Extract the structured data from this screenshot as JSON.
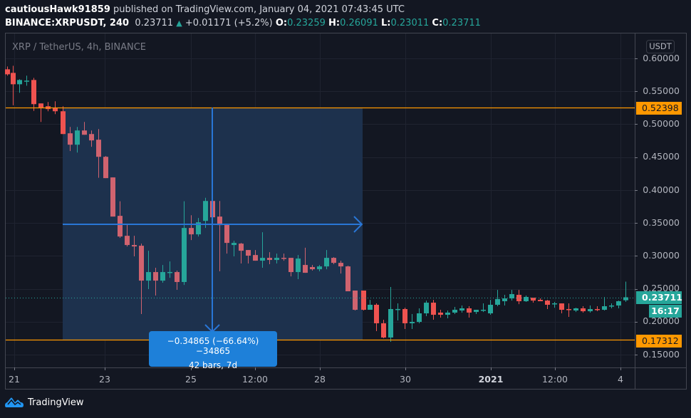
{
  "header": {
    "author": "cautiousHawk91859",
    "published_text": " published on TradingView.com, January 04, 2021 07:43:45 UTC",
    "symbol_interval": "BINANCE:XRPUSDT, 240",
    "last_price": "0.23711",
    "change": "+0.01171 (+5.2%)",
    "ohlc": {
      "o_label": "O:",
      "o": "0.23259",
      "h_label": "H:",
      "h": "0.26091",
      "l_label": "L:",
      "l": "0.23011",
      "c_label": "C:",
      "c": "0.23711"
    }
  },
  "legend": {
    "title": "XRP / TetherUS, 4h, BINANCE"
  },
  "price_axis": {
    "currency": "USDT",
    "ticks": [
      "0.60000",
      "0.55000",
      "0.50000",
      "0.45000",
      "0.40000",
      "0.35000",
      "0.30000",
      "0.25000",
      "0.20000",
      "0.15000"
    ],
    "tags": {
      "upper_line": "0.52398",
      "lower_line": "0.17312",
      "last_price": "0.23711",
      "countdown": "16:17"
    }
  },
  "time_axis": {
    "labels": [
      {
        "text": "21",
        "x": 20
      },
      {
        "text": "23",
        "x": 147
      },
      {
        "text": "25",
        "x": 268
      },
      {
        "text": "12:00",
        "x": 358
      },
      {
        "text": "28",
        "x": 449
      },
      {
        "text": "30",
        "x": 569
      },
      {
        "text": "2021",
        "x": 689
      },
      {
        "text": "12:00",
        "x": 779
      },
      {
        "text": "4",
        "x": 871
      }
    ]
  },
  "measure": {
    "line1": "−0.34865 (−66.64%) −34865",
    "line2": "42 bars, 7d"
  },
  "footer": {
    "brand": "TradingView"
  },
  "colors": {
    "background": "#131722",
    "up": "#26a69a",
    "down": "#ef5350",
    "down_in_range": "#d0636f",
    "line_orange": "#ff9800",
    "measure_blue": "#2962ff",
    "measure_fill": "#1e3350"
  },
  "chart_data": {
    "type": "candlestick",
    "title": "XRP / TetherUS, 4h, BINANCE",
    "xlabel": "",
    "ylabel": "USDT",
    "ylim": [
      0.13,
      0.62
    ],
    "x_tick_labels": [
      "21",
      "23",
      "25",
      "12:00",
      "28",
      "30",
      "2021",
      "12:00",
      "4"
    ],
    "y_tick_labels": [
      "0.60000",
      "0.55000",
      "0.50000",
      "0.45000",
      "0.40000",
      "0.35000",
      "0.30000",
      "0.25000",
      "0.20000",
      "0.15000"
    ],
    "horizontal_lines": [
      0.52398,
      0.17312
    ],
    "last_price": 0.23711,
    "grid": true,
    "candles": [
      {
        "x": 10,
        "o": 0.5834,
        "h": 0.5877,
        "l": 0.5737,
        "c": 0.5758
      },
      {
        "x": 18,
        "o": 0.578,
        "h": 0.5888,
        "l": 0.5288,
        "c": 0.5607
      },
      {
        "x": 27,
        "o": 0.5607,
        "h": 0.5683,
        "l": 0.5478,
        "c": 0.5672
      },
      {
        "x": 37,
        "o": 0.5661,
        "h": 0.5737,
        "l": 0.5585,
        "c": 0.5662
      },
      {
        "x": 47,
        "o": 0.5672,
        "h": 0.5704,
        "l": 0.5202,
        "c": 0.5305
      },
      {
        "x": 57,
        "o": 0.5316,
        "h": 0.5316,
        "l": 0.5035,
        "c": 0.5251
      },
      {
        "x": 67,
        "o": 0.5273,
        "h": 0.5337,
        "l": 0.5197,
        "c": 0.523
      },
      {
        "x": 77,
        "o": 0.5251,
        "h": 0.5348,
        "l": 0.5154,
        "c": 0.5197
      },
      {
        "x": 88,
        "o": 0.5197,
        "h": 0.5272,
        "l": 0.4905,
        "c": 0.4851
      },
      {
        "x": 98,
        "o": 0.4862,
        "h": 0.4959,
        "l": 0.4592,
        "c": 0.4689
      },
      {
        "x": 108,
        "o": 0.4689,
        "h": 0.4959,
        "l": 0.457,
        "c": 0.4905
      },
      {
        "x": 118,
        "o": 0.4905,
        "h": 0.5035,
        "l": 0.4862,
        "c": 0.484
      },
      {
        "x": 128,
        "o": 0.4851,
        "h": 0.4905,
        "l": 0.4657,
        "c": 0.4754
      },
      {
        "x": 138,
        "o": 0.4765,
        "h": 0.4927,
        "l": 0.4186,
        "c": 0.4505
      },
      {
        "x": 148,
        "o": 0.4505,
        "h": 0.4516,
        "l": 0.4186,
        "c": 0.4181
      },
      {
        "x": 158,
        "o": 0.4192,
        "h": 0.3829,
        "l": 0.3667,
        "c": 0.3597
      },
      {
        "x": 168,
        "o": 0.3608,
        "h": 0.3829,
        "l": 0.3273,
        "c": 0.3294
      },
      {
        "x": 178,
        "o": 0.3305,
        "h": 0.3489,
        "l": 0.3143,
        "c": 0.3165
      },
      {
        "x": 188,
        "o": 0.3165,
        "h": 0.3305,
        "l": 0.2992,
        "c": 0.3143
      },
      {
        "x": 198,
        "o": 0.3154,
        "h": 0.3186,
        "l": 0.2117,
        "c": 0.2624
      },
      {
        "x": 208,
        "o": 0.2624,
        "h": 0.3078,
        "l": 0.2495,
        "c": 0.2754
      },
      {
        "x": 218,
        "o": 0.2754,
        "h": 0.2819,
        "l": 0.2398,
        "c": 0.2624
      },
      {
        "x": 228,
        "o": 0.2624,
        "h": 0.2862,
        "l": 0.2592,
        "c": 0.2754
      },
      {
        "x": 238,
        "o": 0.2754,
        "h": 0.2916,
        "l": 0.2667,
        "c": 0.2755
      },
      {
        "x": 248,
        "o": 0.2754,
        "h": 0.2776,
        "l": 0.2484,
        "c": 0.2603
      },
      {
        "x": 258,
        "o": 0.2603,
        "h": 0.3829,
        "l": 0.2559,
        "c": 0.3424
      },
      {
        "x": 268,
        "o": 0.3424,
        "h": 0.3618,
        "l": 0.324,
        "c": 0.3327
      },
      {
        "x": 278,
        "o": 0.3327,
        "h": 0.3575,
        "l": 0.3294,
        "c": 0.351
      },
      {
        "x": 288,
        "o": 0.3532,
        "h": 0.3883,
        "l": 0.3424,
        "c": 0.3834
      },
      {
        "x": 298,
        "o": 0.3834,
        "h": 0.3834,
        "l": 0.3348,
        "c": 0.3586
      },
      {
        "x": 308,
        "o": 0.3597,
        "h": 0.3834,
        "l": 0.2765,
        "c": 0.3467
      },
      {
        "x": 318,
        "o": 0.3478,
        "h": 0.3478,
        "l": 0.3035,
        "c": 0.3197
      },
      {
        "x": 328,
        "o": 0.3165,
        "h": 0.3229,
        "l": 0.2992,
        "c": 0.3197
      },
      {
        "x": 338,
        "o": 0.3186,
        "h": 0.3197,
        "l": 0.2884,
        "c": 0.3078
      },
      {
        "x": 348,
        "o": 0.3089,
        "h": 0.3089,
        "l": 0.2884,
        "c": 0.3003
      },
      {
        "x": 358,
        "o": 0.3013,
        "h": 0.3089,
        "l": 0.297,
        "c": 0.2927
      },
      {
        "x": 368,
        "o": 0.2927,
        "h": 0.3359,
        "l": 0.2819,
        "c": 0.297
      },
      {
        "x": 378,
        "o": 0.297,
        "h": 0.3056,
        "l": 0.2873,
        "c": 0.2938
      },
      {
        "x": 388,
        "o": 0.2938,
        "h": 0.3035,
        "l": 0.2884,
        "c": 0.297
      },
      {
        "x": 398,
        "o": 0.297,
        "h": 0.3035,
        "l": 0.2927,
        "c": 0.2959
      },
      {
        "x": 408,
        "o": 0.297,
        "h": 0.297,
        "l": 0.2689,
        "c": 0.2754
      },
      {
        "x": 418,
        "o": 0.2754,
        "h": 0.3013,
        "l": 0.2646,
        "c": 0.2959
      },
      {
        "x": 428,
        "o": 0.2862,
        "h": 0.3124,
        "l": 0.2754,
        "c": 0.2743
      },
      {
        "x": 438,
        "o": 0.283,
        "h": 0.2862,
        "l": 0.2776,
        "c": 0.2797
      },
      {
        "x": 448,
        "o": 0.2797,
        "h": 0.2862,
        "l": 0.2765,
        "c": 0.284
      },
      {
        "x": 458,
        "o": 0.284,
        "h": 0.3089,
        "l": 0.2797,
        "c": 0.297
      },
      {
        "x": 468,
        "o": 0.297,
        "h": 0.2981,
        "l": 0.2873,
        "c": 0.2894
      },
      {
        "x": 478,
        "o": 0.2894,
        "h": 0.2927,
        "l": 0.2732,
        "c": 0.284
      },
      {
        "x": 488,
        "o": 0.284,
        "h": 0.2851,
        "l": 0.2494,
        "c": 0.2462
      },
      {
        "x": 498,
        "o": 0.2473,
        "h": 0.2473,
        "l": 0.217,
        "c": 0.2181
      },
      {
        "x": 510,
        "o": 0.2473,
        "h": 0.2473,
        "l": 0.217,
        "c": 0.2181
      },
      {
        "x": 519,
        "o": 0.2181,
        "h": 0.2332,
        "l": 0.2181,
        "c": 0.2257
      },
      {
        "x": 528,
        "o": 0.2257,
        "h": 0.2278,
        "l": 0.1857,
        "c": 0.1976
      },
      {
        "x": 538,
        "o": 0.1976,
        "h": 0.203,
        "l": 0.1749,
        "c": 0.176
      },
      {
        "x": 548,
        "o": 0.176,
        "h": 0.2527,
        "l": 0.1695,
        "c": 0.2192
      },
      {
        "x": 558,
        "o": 0.2192,
        "h": 0.2278,
        "l": 0.2019,
        "c": 0.2193
      },
      {
        "x": 568,
        "o": 0.2192,
        "h": 0.2213,
        "l": 0.1889,
        "c": 0.1976
      },
      {
        "x": 578,
        "o": 0.1976,
        "h": 0.2116,
        "l": 0.1889,
        "c": 0.1997
      },
      {
        "x": 588,
        "o": 0.1997,
        "h": 0.2203,
        "l": 0.1976,
        "c": 0.2127
      },
      {
        "x": 598,
        "o": 0.2127,
        "h": 0.2321,
        "l": 0.2084,
        "c": 0.2289
      },
      {
        "x": 608,
        "o": 0.2289,
        "h": 0.2332,
        "l": 0.203,
        "c": 0.2105
      },
      {
        "x": 618,
        "o": 0.2138,
        "h": 0.2181,
        "l": 0.2062,
        "c": 0.2105
      },
      {
        "x": 628,
        "o": 0.2105,
        "h": 0.217,
        "l": 0.2051,
        "c": 0.2138
      },
      {
        "x": 638,
        "o": 0.2138,
        "h": 0.2224,
        "l": 0.2116,
        "c": 0.2181
      },
      {
        "x": 648,
        "o": 0.217,
        "h": 0.2246,
        "l": 0.2138,
        "c": 0.2203
      },
      {
        "x": 658,
        "o": 0.2203,
        "h": 0.2235,
        "l": 0.2062,
        "c": 0.2138
      },
      {
        "x": 668,
        "o": 0.2148,
        "h": 0.2181,
        "l": 0.2116,
        "c": 0.2181
      },
      {
        "x": 678,
        "o": 0.217,
        "h": 0.2278,
        "l": 0.2148,
        "c": 0.2181
      },
      {
        "x": 688,
        "o": 0.2127,
        "h": 0.2332,
        "l": 0.2105,
        "c": 0.2257
      },
      {
        "x": 698,
        "o": 0.2257,
        "h": 0.2483,
        "l": 0.2235,
        "c": 0.2343
      },
      {
        "x": 708,
        "o": 0.2311,
        "h": 0.2408,
        "l": 0.2246,
        "c": 0.2354
      },
      {
        "x": 718,
        "o": 0.2354,
        "h": 0.2483,
        "l": 0.2321,
        "c": 0.2419
      },
      {
        "x": 728,
        "o": 0.2408,
        "h": 0.2483,
        "l": 0.2267,
        "c": 0.2311
      },
      {
        "x": 738,
        "o": 0.2311,
        "h": 0.2397,
        "l": 0.23,
        "c": 0.2376
      },
      {
        "x": 748,
        "o": 0.2365,
        "h": 0.2365,
        "l": 0.2289,
        "c": 0.2321
      },
      {
        "x": 758,
        "o": 0.2332,
        "h": 0.2354,
        "l": 0.2321,
        "c": 0.2311
      },
      {
        "x": 768,
        "o": 0.2321,
        "h": 0.2332,
        "l": 0.2192,
        "c": 0.2257
      },
      {
        "x": 778,
        "o": 0.2278,
        "h": 0.23,
        "l": 0.2213,
        "c": 0.2279
      },
      {
        "x": 788,
        "o": 0.2278,
        "h": 0.2278,
        "l": 0.2127,
        "c": 0.2181
      },
      {
        "x": 798,
        "o": 0.2192,
        "h": 0.2278,
        "l": 0.2073,
        "c": 0.2191
      },
      {
        "x": 808,
        "o": 0.217,
        "h": 0.2213,
        "l": 0.2148,
        "c": 0.2203
      },
      {
        "x": 818,
        "o": 0.2203,
        "h": 0.2235,
        "l": 0.2138,
        "c": 0.2159
      },
      {
        "x": 828,
        "o": 0.2159,
        "h": 0.2246,
        "l": 0.2138,
        "c": 0.2192
      },
      {
        "x": 838,
        "o": 0.2192,
        "h": 0.2235,
        "l": 0.2159,
        "c": 0.2191
      },
      {
        "x": 848,
        "o": 0.2181,
        "h": 0.2375,
        "l": 0.217,
        "c": 0.2235
      },
      {
        "x": 858,
        "o": 0.2235,
        "h": 0.2278,
        "l": 0.2203,
        "c": 0.2246
      },
      {
        "x": 868,
        "o": 0.2246,
        "h": 0.2321,
        "l": 0.2203,
        "c": 0.2311
      },
      {
        "x": 878,
        "o": 0.2326,
        "h": 0.2609,
        "l": 0.2301,
        "c": 0.2371
      }
    ]
  }
}
